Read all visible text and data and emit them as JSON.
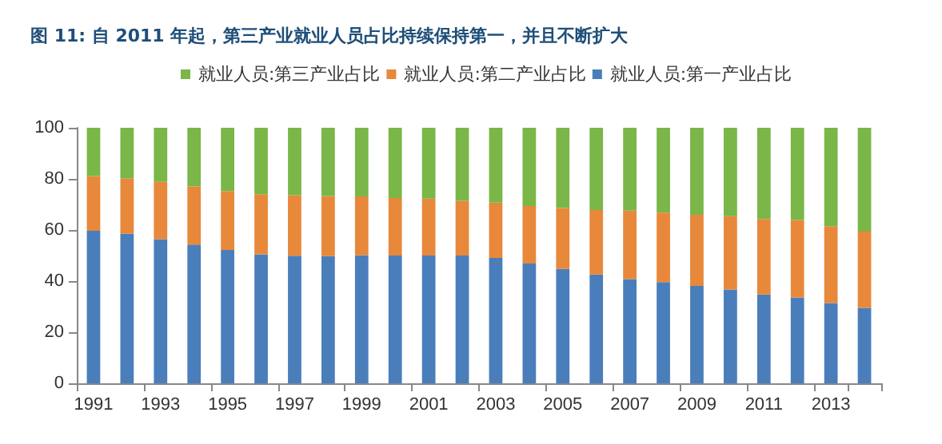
{
  "chart_data": {
    "type": "bar",
    "title": "图 11: 自 2011 年起，第三产业就业人员占比持续保持第一，并且不断扩大",
    "categories": [
      "1991",
      null,
      "1993",
      null,
      "1995",
      null,
      "1997",
      null,
      "1999",
      null,
      "2001",
      null,
      "2003",
      null,
      "2005",
      null,
      "2007",
      null,
      "2009",
      null,
      "2011",
      null,
      "2013",
      null
    ],
    "stacked": true,
    "series": [
      {
        "name": "就业人员:第一产业占比",
        "color": "#4a7ebb",
        "values": [
          59.7,
          58.5,
          56.4,
          54.3,
          52.2,
          50.5,
          49.9,
          49.8,
          50.1,
          50.0,
          50.0,
          50.0,
          49.1,
          46.9,
          44.8,
          42.6,
          40.8,
          39.6,
          38.1,
          36.7,
          34.8,
          33.6,
          31.4,
          29.5
        ]
      },
      {
        "name": "就业人员:第二产业占比",
        "color": "#e8883a",
        "values": [
          21.4,
          21.7,
          22.4,
          22.7,
          23.0,
          23.5,
          23.7,
          23.5,
          23.0,
          22.5,
          22.3,
          21.4,
          21.6,
          22.5,
          23.8,
          25.2,
          26.8,
          27.2,
          27.8,
          28.7,
          29.5,
          30.3,
          30.1,
          29.9
        ]
      },
      {
        "name": "就业人员:第三产业占比",
        "color": "#7ab648",
        "values": [
          18.9,
          19.8,
          21.2,
          23.0,
          24.8,
          26.0,
          26.4,
          26.7,
          26.9,
          27.5,
          27.7,
          28.6,
          29.3,
          30.6,
          31.4,
          32.2,
          32.4,
          33.2,
          34.1,
          34.6,
          35.7,
          36.1,
          38.5,
          40.6
        ]
      }
    ],
    "ylim": [
      0,
      100
    ],
    "yticks": [
      0,
      20,
      40,
      60,
      80,
      100
    ],
    "grid": false,
    "legend": "top"
  }
}
